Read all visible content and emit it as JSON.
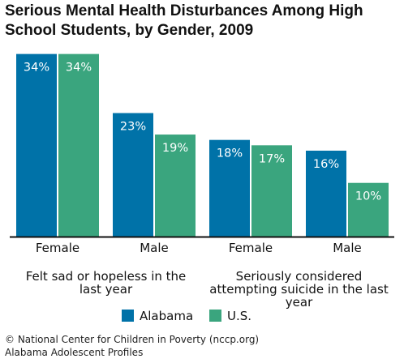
{
  "title_line1": "Serious Mental Health Disturbances Among High",
  "title_line2": "School Students, by Gender, 2009",
  "footer_line1": "© National Center for Children in Poverty (nccp.org)",
  "footer_line2": "Alabama Adolescent Profiles",
  "chart_data": {
    "type": "bar",
    "title": "Serious Mental Health Disturbances Among High School Students, by Gender, 2009",
    "categories": [
      "Female",
      "Male",
      "Female",
      "Male"
    ],
    "groups": [
      {
        "label_lines": [
          "Felt sad or hopeless in the",
          "last year"
        ],
        "categories": [
          0,
          1
        ]
      },
      {
        "label_lines": [
          "Seriously considered",
          "attempting suicide in the last",
          "year"
        ],
        "categories": [
          2,
          3
        ]
      }
    ],
    "series": [
      {
        "name": "Alabama",
        "color": "#0072a8",
        "values": [
          34,
          23,
          18,
          16
        ],
        "labels": [
          "34%",
          "23%",
          "18%",
          "16%"
        ]
      },
      {
        "name": "U.S.",
        "color": "#3aa57e",
        "values": [
          34,
          19,
          17,
          10
        ],
        "labels": [
          "34%",
          "19%",
          "17%",
          "10%"
        ]
      }
    ],
    "ylim": [
      0,
      35
    ],
    "grid": false,
    "legend": "bottom-center"
  }
}
